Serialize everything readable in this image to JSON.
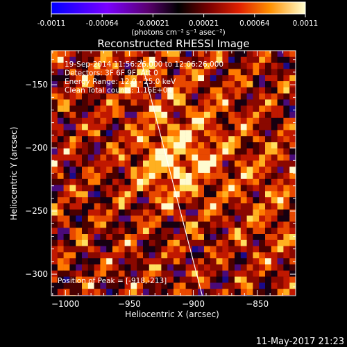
{
  "colorbar": {
    "min": -0.0011,
    "max": 0.0011,
    "tick_labels": [
      "-0.0011",
      "-0.00064",
      "-0.00021",
      "0.00021",
      "0.00064",
      "0.0011"
    ],
    "unit_label": "(photons cm⁻² s⁻¹ asec⁻²)"
  },
  "chart_data": {
    "type": "heatmap",
    "title": "Reconstructed RHESSI Image",
    "xlabel": "Heliocentric X (arcsec)",
    "ylabel": "Heliocentric Y (arcsec)",
    "xlim": [
      -1011,
      -820
    ],
    "ylim": [
      -317,
      -123
    ],
    "x_ticks": [
      -1000,
      -950,
      -900,
      -850
    ],
    "y_ticks": [
      -150,
      -200,
      -250,
      -300
    ],
    "x_tick_labels": [
      "−1000",
      "−950",
      "−900",
      "−850"
    ],
    "y_tick_labels": [
      "−150",
      "−200",
      "−250",
      "−300"
    ],
    "annotations": [
      "19-Sep-2014 11:56:26.000 to 12:06:26.000",
      "Detectors: 3F 6F 9F, Att 0",
      "Energy Range: 12.0 - 25.0 keV",
      "Clean     Total counts: 1.16E+04"
    ],
    "peak_label": "Position of Peak = [-918,-213]",
    "peak": [
      -918,
      -213
    ],
    "limb_line": [
      [
        -941,
        -130
      ],
      [
        -893,
        -317
      ]
    ],
    "colormap": "rhessi-red-yellow",
    "grid": false
  },
  "footer": {
    "date": "11-May-2017 21:23"
  }
}
